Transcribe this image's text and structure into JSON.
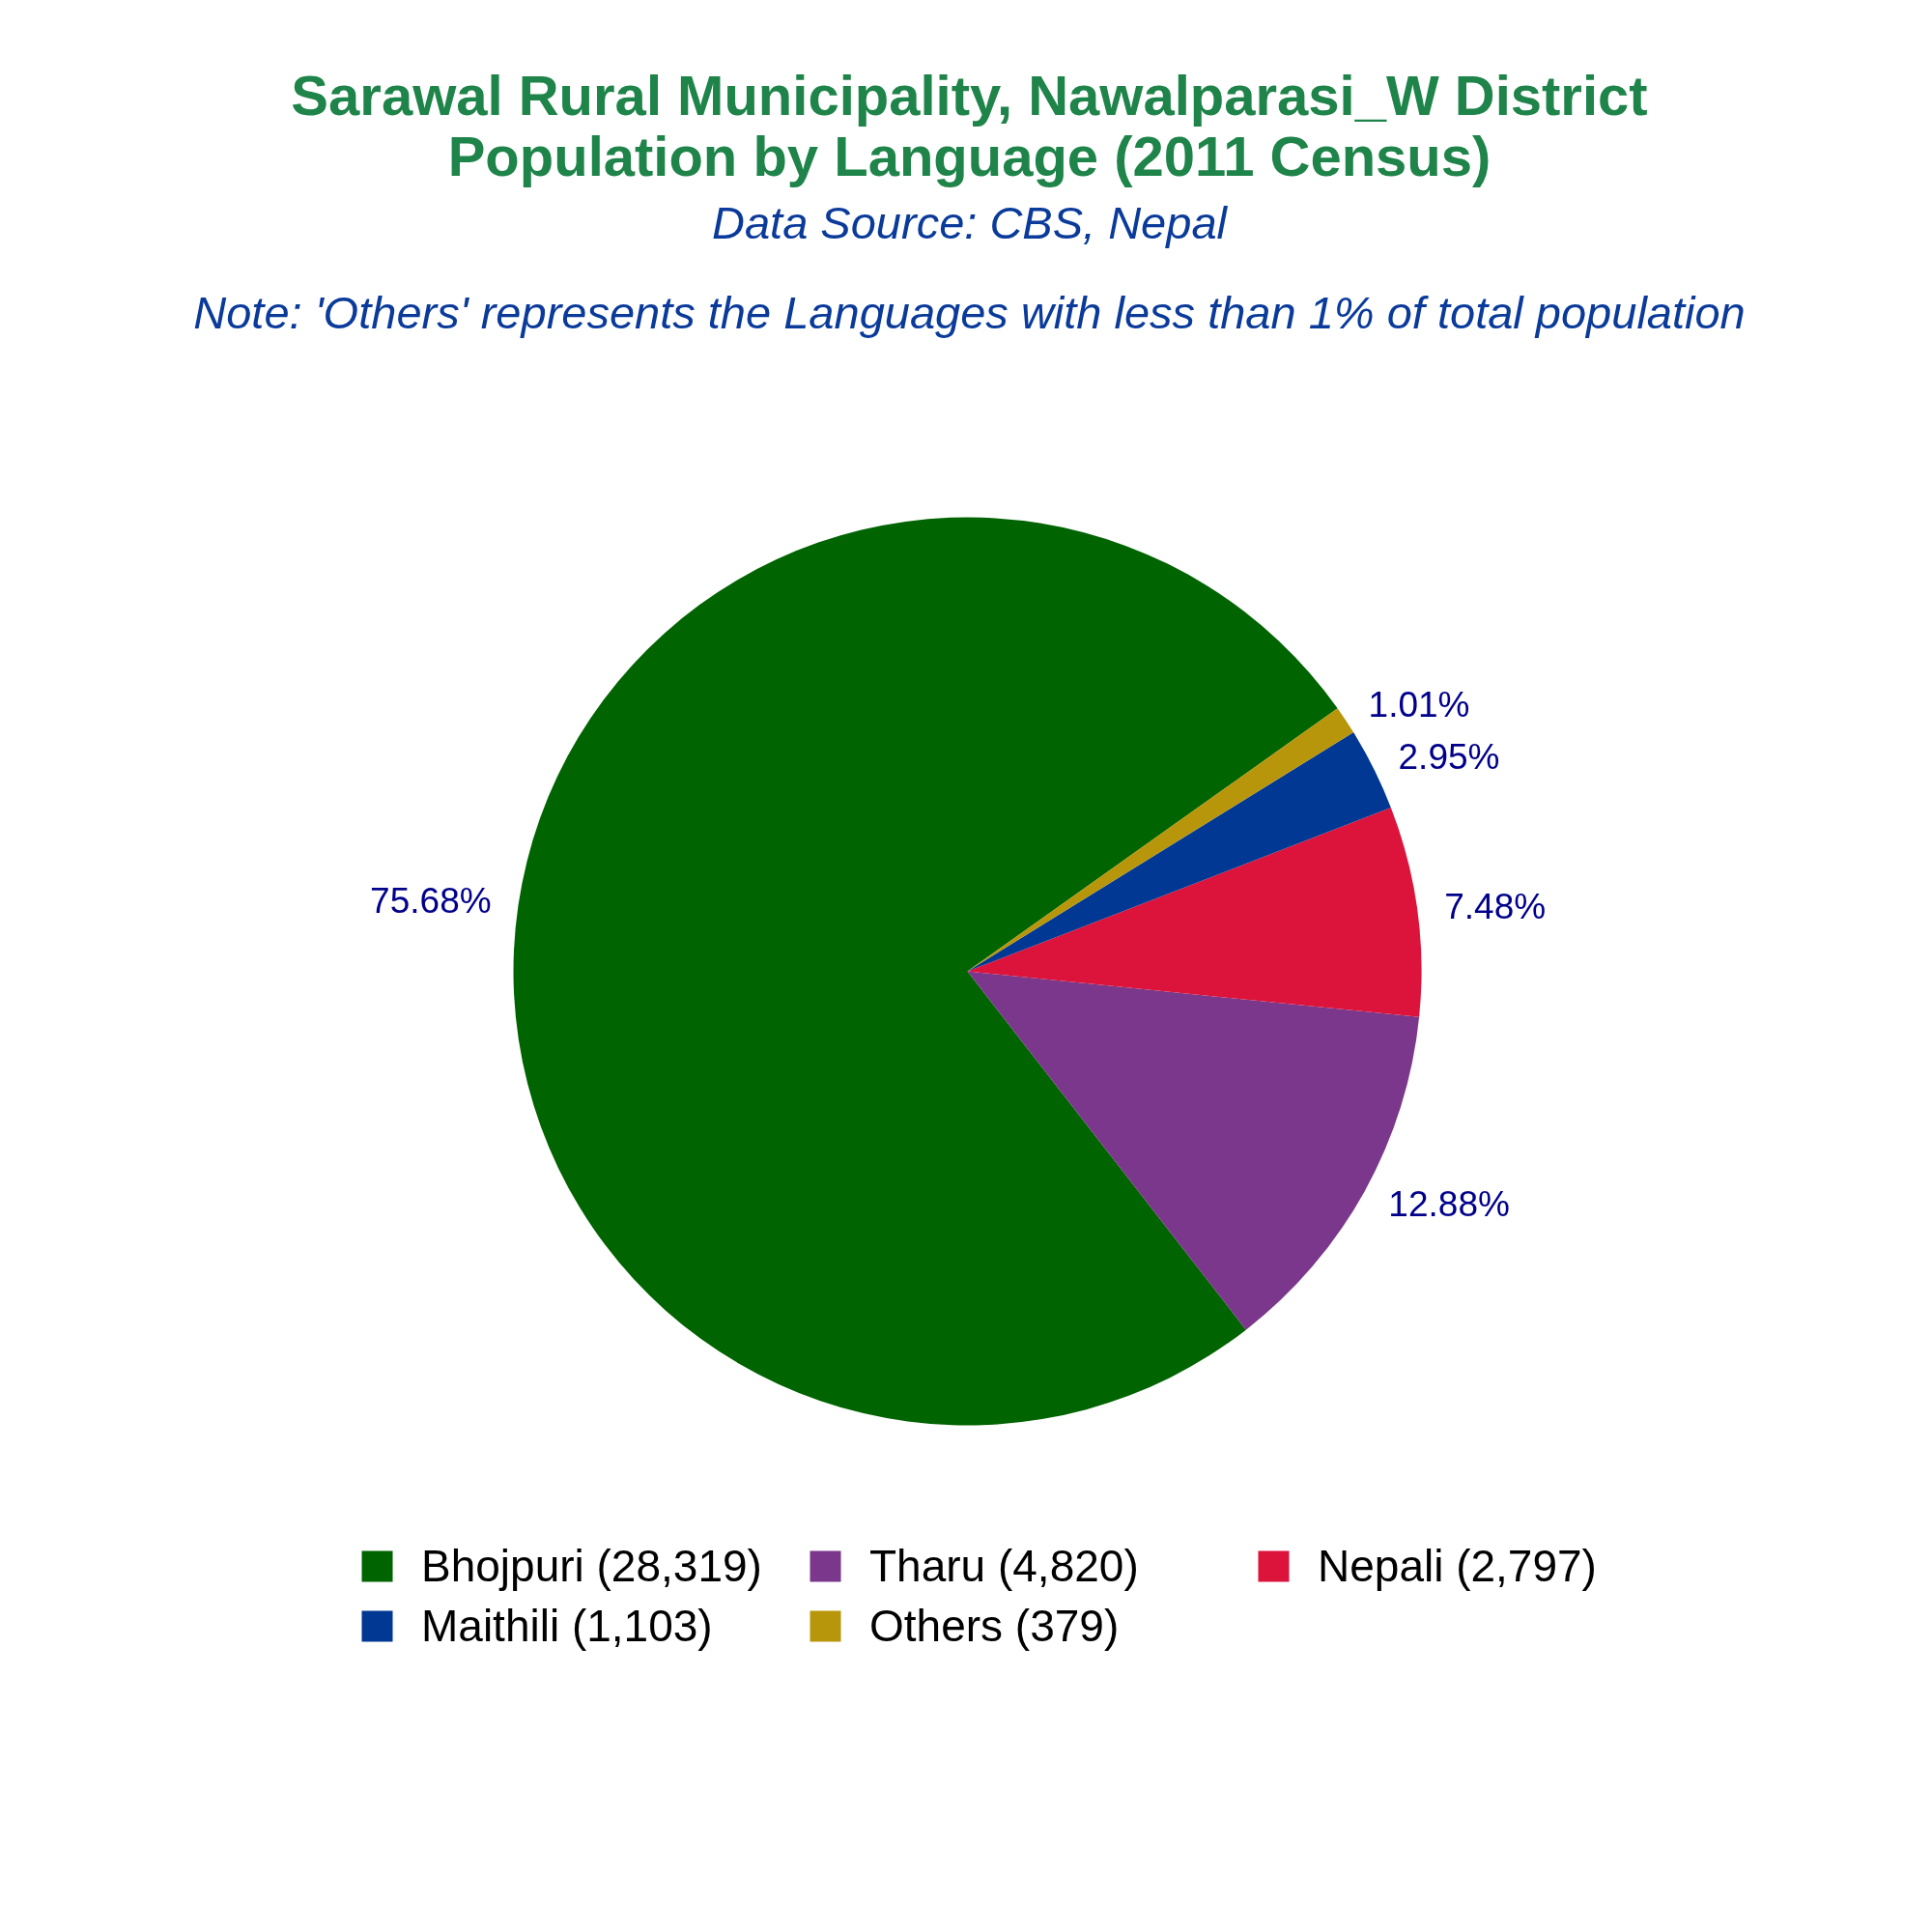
{
  "chart_data": {
    "type": "pie",
    "title": "Sarawal Rural Municipality, Nawalparasi_W District\nPopulation by Language (2011 Census)",
    "subtitle": "Data Source: CBS, Nepal",
    "annotations": [
      "Note: 'Others' represents the Languages with less than 1% of total population"
    ],
    "categories": [
      "Bhojpuri (28,319)",
      "Tharu (4,820)",
      "Nepali (2,797)",
      "Maithili (1,103)",
      "Others (379)"
    ],
    "values": [
      75.68,
      12.88,
      7.48,
      2.95,
      1.01
    ],
    "colors": [
      "#006400",
      "#7a378b",
      "#dc143c",
      "#003893",
      "#b8960b"
    ],
    "value_labels": [
      "75.68%",
      "12.88%",
      "7.48%",
      "2.95%",
      "1.01%"
    ],
    "legend": "bottom"
  }
}
